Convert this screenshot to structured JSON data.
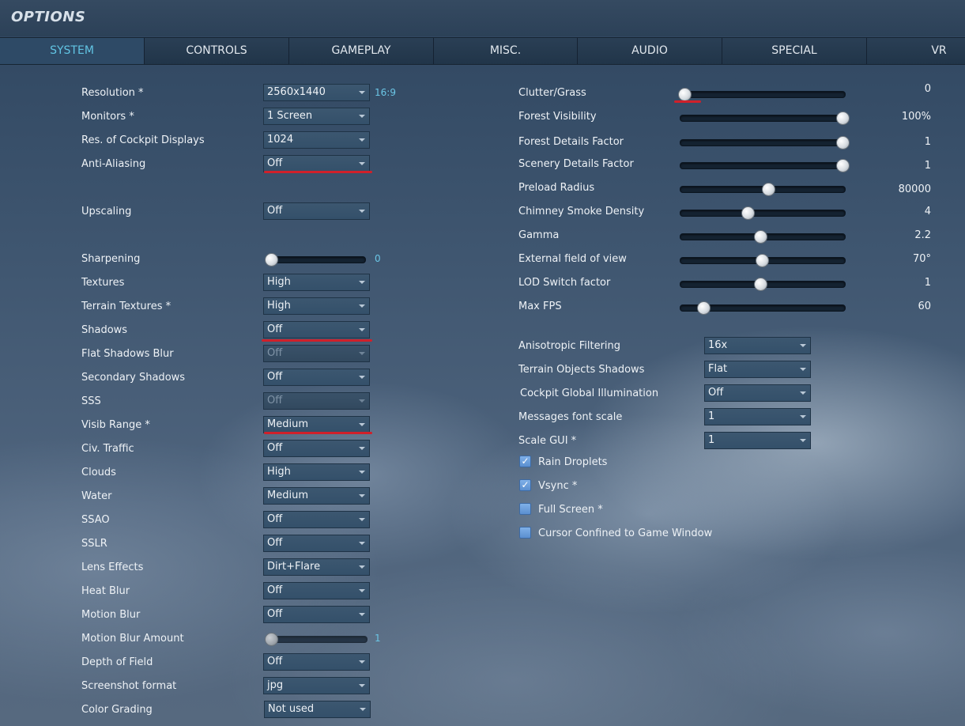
{
  "window": {
    "title": "OPTIONS"
  },
  "tabs": [
    {
      "label": "SYSTEM",
      "active": true
    },
    {
      "label": "CONTROLS"
    },
    {
      "label": "GAMEPLAY"
    },
    {
      "label": "MISC."
    },
    {
      "label": "AUDIO"
    },
    {
      "label": "SPECIAL"
    },
    {
      "label": "VR"
    }
  ],
  "left": {
    "resolution": {
      "label": "Resolution *",
      "value": "2560x1440",
      "aspect": "16:9"
    },
    "monitors": {
      "label": "Monitors *",
      "value": "1 Screen"
    },
    "cockpit_res": {
      "label": "Res. of Cockpit Displays",
      "value": "1024"
    },
    "anti_aliasing": {
      "label": "Anti-Aliasing",
      "value": "Off"
    },
    "upscaling": {
      "label": "Upscaling",
      "value": "Off"
    },
    "sharpening": {
      "label": "Sharpening",
      "value": "0",
      "level": 0
    },
    "textures": {
      "label": "Textures",
      "value": "High"
    },
    "terrain_textures": {
      "label": "Terrain Textures *",
      "value": "High"
    },
    "shadows": {
      "label": "Shadows",
      "value": "Off"
    },
    "flat_shadows_blur": {
      "label": "Flat Shadows Blur",
      "value": "Off",
      "disabled": true
    },
    "secondary_shadows": {
      "label": "Secondary Shadows",
      "value": "Off"
    },
    "sss": {
      "label": "SSS",
      "value": "Off",
      "disabled": true
    },
    "visib_range": {
      "label": "Visib Range *",
      "value": "Medium"
    },
    "civ_traffic": {
      "label": "Civ. Traffic",
      "value": "Off"
    },
    "clouds": {
      "label": "Clouds",
      "value": "High"
    },
    "water": {
      "label": "Water",
      "value": "Medium"
    },
    "ssao": {
      "label": "SSAO",
      "value": "Off"
    },
    "sslr": {
      "label": "SSLR",
      "value": "Off"
    },
    "lens_effects": {
      "label": "Lens Effects",
      "value": "Dirt+Flare"
    },
    "heat_blur": {
      "label": "Heat Blur",
      "value": "Off"
    },
    "motion_blur": {
      "label": "Motion Blur",
      "value": "Off"
    },
    "motion_blur_amount": {
      "label": "Motion Blur Amount",
      "value": "1",
      "level": 0,
      "disabled": true
    },
    "depth_of_field": {
      "label": "Depth of Field",
      "value": "Off"
    },
    "screenshot_format": {
      "label": "Screenshot format",
      "value": "jpg"
    },
    "color_grading": {
      "label": "Color Grading",
      "value": "Not used"
    }
  },
  "right": {
    "clutter_grass": {
      "label": "Clutter/Grass",
      "value": "0",
      "level": 0.0
    },
    "forest_visibility": {
      "label": "Forest Visibility",
      "value": "100%",
      "level": 1.0
    },
    "forest_details": {
      "label": "Forest Details Factor",
      "value": "1",
      "level": 1.0
    },
    "scenery_details": {
      "label": "Scenery Details Factor",
      "value": "1",
      "level": 1.0
    },
    "preload_radius": {
      "label": "Preload Radius",
      "value": "80000",
      "level": 0.53
    },
    "chimney_smoke": {
      "label": "Chimney Smoke Density",
      "value": "4",
      "level": 0.4
    },
    "gamma": {
      "label": "Gamma",
      "value": "2.2",
      "level": 0.48
    },
    "external_fov": {
      "label": "External field of view",
      "value": "70°",
      "level": 0.49
    },
    "lod_switch": {
      "label": "LOD Switch factor",
      "value": "1",
      "level": 0.48
    },
    "max_fps": {
      "label": "Max FPS",
      "value": "60",
      "level": 0.12
    },
    "anisotropic": {
      "label": "Anisotropic Filtering",
      "value": "16x"
    },
    "terrain_obj_shadows": {
      "label": "Terrain Objects Shadows",
      "value": "Flat"
    },
    "cockpit_gi": {
      "label": "Cockpit Global Illumination",
      "value": "Off"
    },
    "messages_font": {
      "label": "Messages font scale",
      "value": "1"
    },
    "scale_gui": {
      "label": "Scale GUI *",
      "value": "1"
    },
    "rain_droplets": {
      "label": "Rain Droplets",
      "checked": true
    },
    "vsync": {
      "label": "Vsync *",
      "checked": true
    },
    "full_screen": {
      "label": "Full Screen *",
      "checked": false
    },
    "cursor_confined": {
      "label": "Cursor Confined to Game Window",
      "checked": false
    }
  },
  "colors": {
    "accent": "#61c4e3",
    "highlight_underline": "#d0202a"
  }
}
